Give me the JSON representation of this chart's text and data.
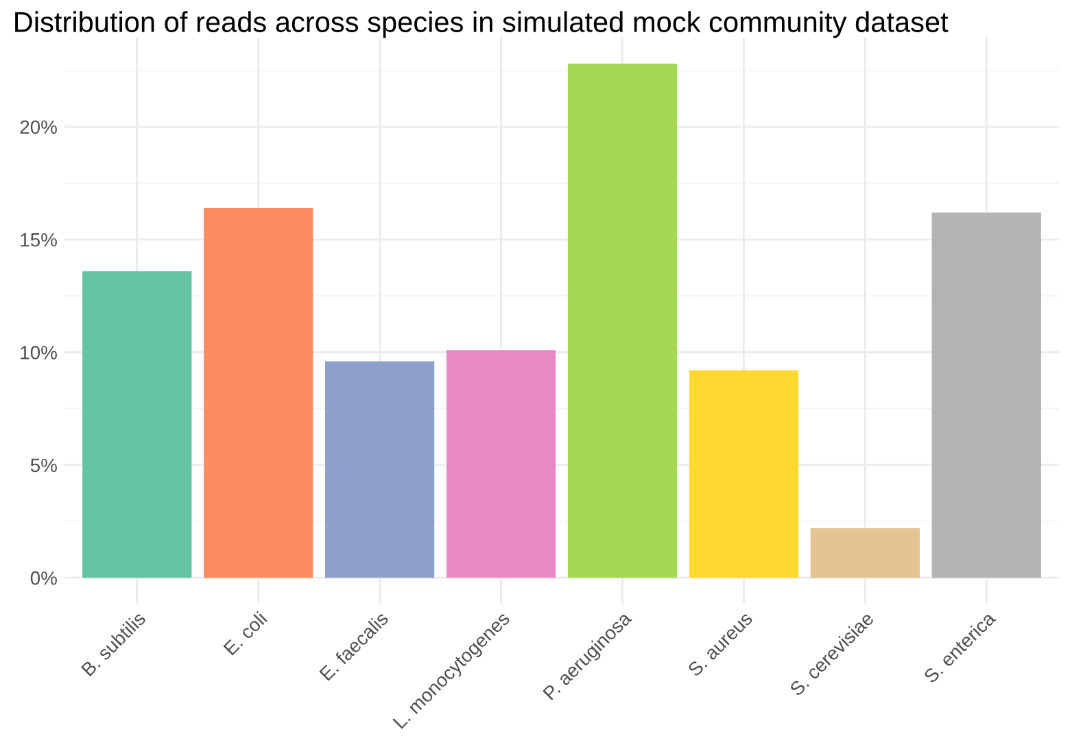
{
  "chart_data": {
    "type": "bar",
    "title": "Distribution of reads across species in simulated mock community dataset",
    "categories": [
      "B. subtilis",
      "E. coli",
      "E. faecalis",
      "L. monocytogenes",
      "P. aeruginosa",
      "S. aureus",
      "S. cerevisiae",
      "S. enterica"
    ],
    "values": [
      13.6,
      16.4,
      9.6,
      10.1,
      22.8,
      9.2,
      2.2,
      16.2
    ],
    "colors": [
      "#66c2a5",
      "#fc8d62",
      "#8da0cb",
      "#e78ac3",
      "#a6d854",
      "#ffd92f",
      "#e5c494",
      "#b3b3b3"
    ],
    "ylim": [
      -1.14,
      23.97
    ],
    "yticks": [
      {
        "value": 0,
        "label": "0%"
      },
      {
        "value": 5,
        "label": "5%"
      },
      {
        "value": 10,
        "label": "10%"
      },
      {
        "value": 15,
        "label": "15%"
      },
      {
        "value": 20,
        "label": "20%"
      }
    ],
    "grid": true
  }
}
